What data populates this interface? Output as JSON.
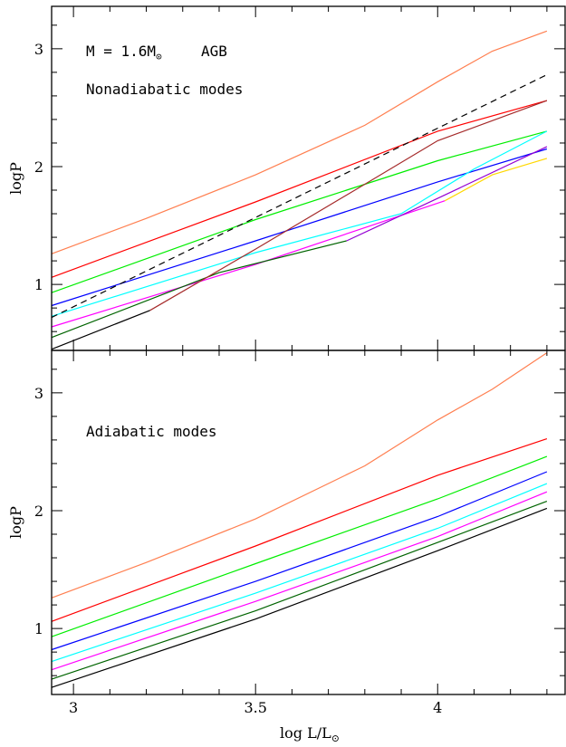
{
  "chart_data": [
    {
      "type": "line",
      "title": "",
      "xlabel": "",
      "ylabel": "logP",
      "xlim": [
        2.94,
        4.35
      ],
      "ylim": [
        0.44,
        3.36
      ],
      "xticks": [
        "3",
        "3.5",
        "4"
      ],
      "yticks": [
        "1",
        "2",
        "3"
      ],
      "annotations": [
        "M = 1.6M",
        "AGB",
        "Nonadiabatic modes"
      ],
      "annotation_symbols": {
        "mass_subscript": "⊙"
      },
      "series": [
        {
          "color": "#ff7f50",
          "x": [
            2.94,
            3.2,
            3.5,
            3.8,
            4.0,
            4.15,
            4.3
          ],
          "y": [
            1.26,
            1.56,
            1.93,
            2.35,
            2.72,
            2.98,
            3.15
          ]
        },
        {
          "color": "#ff0000",
          "x": [
            2.94,
            3.5,
            4.0,
            4.3
          ],
          "y": [
            1.06,
            1.7,
            2.3,
            2.56
          ]
        },
        {
          "color": "#00ee00",
          "x": [
            2.94,
            3.5,
            4.0,
            4.3
          ],
          "y": [
            0.93,
            1.55,
            2.05,
            2.3
          ]
        },
        {
          "color": "#0000ff",
          "x": [
            2.94,
            3.5,
            4.0,
            4.3
          ],
          "y": [
            0.82,
            1.37,
            1.87,
            2.15
          ]
        },
        {
          "color": "#00ffff",
          "x": [
            2.94,
            3.5,
            3.9,
            4.1,
            4.3
          ],
          "y": [
            0.73,
            1.27,
            1.6,
            1.98,
            2.3
          ]
        },
        {
          "color": "#ff00ff",
          "x": [
            2.94,
            3.5,
            4.02
          ],
          "y": [
            0.64,
            1.17,
            1.71
          ]
        },
        {
          "color": "#006400",
          "x": [
            2.94,
            3.4,
            3.75
          ],
          "y": [
            0.55,
            1.1,
            1.37
          ]
        },
        {
          "color": "#000000",
          "x": [
            2.94,
            3.21
          ],
          "y": [
            0.45,
            0.78
          ]
        },
        {
          "color": "#a52a2a",
          "x": [
            3.21,
            3.5,
            3.8,
            4.0,
            4.3
          ],
          "y": [
            0.78,
            1.3,
            1.85,
            2.22,
            2.56
          ]
        },
        {
          "color": "#9400d3",
          "x": [
            3.75,
            4.0,
            4.3
          ],
          "y": [
            1.37,
            1.73,
            2.17
          ]
        },
        {
          "color": "#ffd700",
          "x": [
            4.02,
            4.15,
            4.3
          ],
          "y": [
            1.71,
            1.93,
            2.07
          ]
        },
        {
          "color": "#000000",
          "dashed": true,
          "x": [
            2.94,
            4.3
          ],
          "y": [
            0.72,
            2.78
          ]
        }
      ]
    },
    {
      "type": "line",
      "title": "",
      "xlabel": "log L/L",
      "xlabel_subscript": "⊙",
      "ylabel": "logP",
      "xlim": [
        2.94,
        4.35
      ],
      "ylim": [
        0.44,
        3.36
      ],
      "xticks": [
        "3",
        "3.5",
        "4"
      ],
      "yticks": [
        "1",
        "2",
        "3"
      ],
      "annotations": [
        "Adiabatic modes"
      ],
      "series": [
        {
          "color": "#ff7f50",
          "x": [
            2.94,
            3.2,
            3.5,
            3.8,
            4.0,
            4.15,
            4.3
          ],
          "y": [
            1.26,
            1.56,
            1.93,
            2.38,
            2.77,
            3.03,
            3.34
          ]
        },
        {
          "color": "#ff0000",
          "x": [
            2.94,
            3.5,
            4.0,
            4.3
          ],
          "y": [
            1.06,
            1.7,
            2.3,
            2.61
          ]
        },
        {
          "color": "#00ee00",
          "x": [
            2.94,
            3.5,
            4.0,
            4.3
          ],
          "y": [
            0.93,
            1.55,
            2.1,
            2.46
          ]
        },
        {
          "color": "#0000ff",
          "x": [
            2.94,
            3.5,
            4.0,
            4.3
          ],
          "y": [
            0.82,
            1.4,
            1.95,
            2.33
          ]
        },
        {
          "color": "#00ffff",
          "x": [
            2.94,
            3.5,
            4.0,
            4.3
          ],
          "y": [
            0.72,
            1.3,
            1.85,
            2.23
          ]
        },
        {
          "color": "#ff00ff",
          "x": [
            2.94,
            3.5,
            4.0,
            4.3
          ],
          "y": [
            0.65,
            1.23,
            1.78,
            2.16
          ]
        },
        {
          "color": "#006400",
          "x": [
            2.94,
            3.5,
            4.0,
            4.3
          ],
          "y": [
            0.57,
            1.15,
            1.73,
            2.08
          ]
        },
        {
          "color": "#000000",
          "x": [
            2.94,
            3.5,
            4.0,
            4.3
          ],
          "y": [
            0.5,
            1.08,
            1.66,
            2.02
          ]
        }
      ]
    }
  ]
}
